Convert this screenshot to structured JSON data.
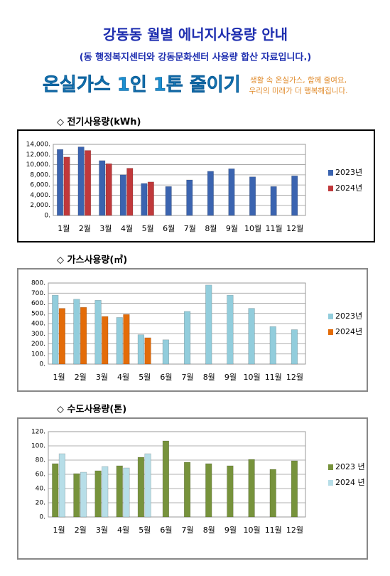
{
  "header": {
    "title": "강동동 월별 에너지사용량 안내",
    "subtitle": "(동 행정복지센터와 강동문화센터 사용량 합산 자료입니다.)",
    "banner": "온실가스 1인 1톤 줄이기",
    "slogan": [
      "생활 속 온실가스, 함께 줄여요,",
      "우리의 미래가 더 행복해집니다."
    ]
  },
  "chart_data": [
    {
      "type": "bar",
      "title": "◇ 전기사용량(kWh)",
      "categories": [
        "1월",
        "2월",
        "3월",
        "4월",
        "5월",
        "6월",
        "7월",
        "8월",
        "9월",
        "10월",
        "11월",
        "12월"
      ],
      "series": [
        {
          "name": "2023년",
          "color": "#3b64b0",
          "values": [
            13000,
            13500,
            10800,
            8000,
            6300,
            5700,
            7000,
            8700,
            9200,
            7600,
            5700,
            7800
          ]
        },
        {
          "name": "2024년",
          "color": "#c0393b",
          "values": [
            11500,
            12800,
            10200,
            9300,
            6600,
            null,
            null,
            null,
            null,
            null,
            null,
            null
          ]
        }
      ],
      "ylim": [
        0,
        14000
      ],
      "yticks": [
        {
          "value": 0,
          "label": "0."
        },
        {
          "value": 2000,
          "label": "2,000."
        },
        {
          "value": 4000,
          "label": "4,000."
        },
        {
          "value": 6000,
          "label": "6,000."
        },
        {
          "value": 8000,
          "label": "8,000."
        },
        {
          "value": 10000,
          "label": "10,000."
        },
        {
          "value": 12000,
          "label": "12,000."
        },
        {
          "value": 14000,
          "label": "14,000."
        }
      ],
      "grid": true,
      "legend": "right"
    },
    {
      "type": "bar",
      "title": "◇ 가스사용량(㎥)",
      "categories": [
        "1월",
        "2월",
        "3월",
        "4월",
        "5월",
        "6월",
        "7월",
        "8월",
        "9월",
        "10월",
        "11월",
        "12월"
      ],
      "series": [
        {
          "name": "2023년",
          "color": "#92cddc",
          "values": [
            680,
            640,
            630,
            460,
            290,
            240,
            520,
            780,
            680,
            550,
            370,
            340
          ]
        },
        {
          "name": "2024년",
          "color": "#e36c09",
          "values": [
            550,
            560,
            470,
            490,
            260,
            null,
            null,
            null,
            null,
            null,
            null,
            null
          ]
        }
      ],
      "ylim": [
        0,
        800
      ],
      "yticks": [
        {
          "value": 0,
          "label": "0."
        },
        {
          "value": 100,
          "label": "100."
        },
        {
          "value": 200,
          "label": "200."
        },
        {
          "value": 300,
          "label": "300."
        },
        {
          "value": 400,
          "label": "400."
        },
        {
          "value": 500,
          "label": "500."
        },
        {
          "value": 600,
          "label": "600."
        },
        {
          "value": 700,
          "label": "700."
        },
        {
          "value": 800,
          "label": "800."
        }
      ],
      "grid": true,
      "legend": "right"
    },
    {
      "type": "bar",
      "title": "◇ 수도사용량(톤)",
      "categories": [
        "1월",
        "2월",
        "3월",
        "4월",
        "5월",
        "6월",
        "7월",
        "8월",
        "9월",
        "10월",
        "11월",
        "12월"
      ],
      "series": [
        {
          "name": "2023 년",
          "color": "#77933c",
          "values": [
            75,
            61,
            65,
            72,
            84,
            107,
            77,
            75,
            72,
            81,
            67,
            79
          ]
        },
        {
          "name": "2024 년",
          "color": "#b7dee8",
          "values": [
            89,
            63,
            71,
            69,
            89,
            null,
            null,
            null,
            null,
            null,
            null,
            null
          ]
        }
      ],
      "ylim": [
        0,
        120
      ],
      "yticks": [
        {
          "value": 0,
          "label": "0."
        },
        {
          "value": 20,
          "label": "20."
        },
        {
          "value": 40,
          "label": "40."
        },
        {
          "value": 60,
          "label": "60."
        },
        {
          "value": 80,
          "label": "80."
        },
        {
          "value": 100,
          "label": "100."
        },
        {
          "value": 120,
          "label": "120."
        }
      ],
      "grid": true,
      "legend": "right"
    }
  ]
}
